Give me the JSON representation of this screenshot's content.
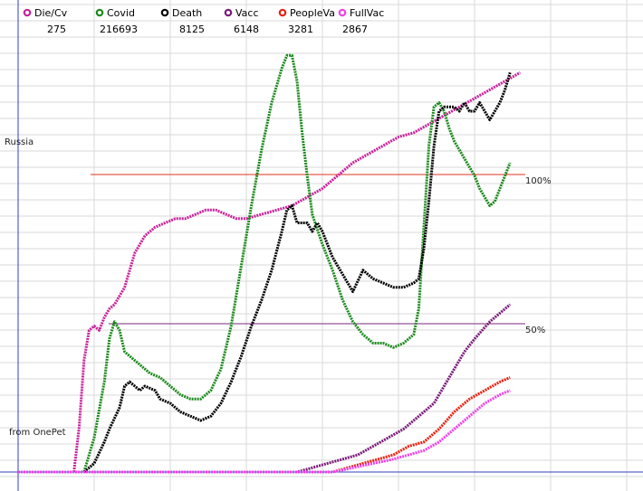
{
  "chart_data": {
    "type": "line",
    "region_label": "Russia",
    "source_note": "from OnePet",
    "reference_lines": [
      {
        "label": "100%",
        "color": "#e03020"
      },
      {
        "label": "50%",
        "color": "#7a2a7a"
      }
    ],
    "legend": [
      {
        "name": "Die/Cv",
        "value": "275",
        "color": "#c8209a"
      },
      {
        "name": "Covid",
        "value": "216693",
        "color": "#1a8a1a"
      },
      {
        "name": "Death",
        "value": "8125",
        "color": "#000000"
      },
      {
        "name": "Vacc",
        "value": "6148",
        "color": "#7a1a7a"
      },
      {
        "name": "PeopleVa",
        "value": "3281",
        "color": "#e82010"
      },
      {
        "name": "FullVac",
        "value": "2867",
        "color": "#f040e8"
      }
    ],
    "x_range": [
      0,
      100
    ],
    "y_range": [
      0,
      100
    ],
    "grid": true,
    "series": [
      {
        "name": "Die/Cv",
        "color": "#c8209a",
        "points": [
          [
            11,
            0
          ],
          [
            12,
            10
          ],
          [
            13,
            26
          ],
          [
            14,
            33
          ],
          [
            15,
            34
          ],
          [
            16,
            33
          ],
          [
            17,
            36
          ],
          [
            18,
            38
          ],
          [
            19,
            39
          ],
          [
            20,
            41
          ],
          [
            21,
            43
          ],
          [
            22,
            47
          ],
          [
            23,
            51
          ],
          [
            25,
            55
          ],
          [
            27,
            57
          ],
          [
            29,
            58
          ],
          [
            31,
            59
          ],
          [
            33,
            59
          ],
          [
            35,
            60
          ],
          [
            37,
            61
          ],
          [
            39,
            61
          ],
          [
            41,
            60
          ],
          [
            43,
            59
          ],
          [
            45,
            59
          ],
          [
            48,
            60
          ],
          [
            51,
            61
          ],
          [
            54,
            62
          ],
          [
            57,
            64
          ],
          [
            60,
            66
          ],
          [
            63,
            69
          ],
          [
            66,
            72
          ],
          [
            69,
            74
          ],
          [
            72,
            76
          ],
          [
            75,
            78
          ],
          [
            78,
            79
          ],
          [
            81,
            81
          ],
          [
            84,
            83
          ],
          [
            87,
            85
          ],
          [
            90,
            87
          ],
          [
            93,
            89
          ],
          [
            96,
            91
          ],
          [
            99,
            93
          ]
        ]
      },
      {
        "name": "Covid",
        "color": "#1a8a1a",
        "points": [
          [
            13,
            0
          ],
          [
            15,
            8
          ],
          [
            17,
            21
          ],
          [
            18,
            31
          ],
          [
            19,
            35
          ],
          [
            20,
            33
          ],
          [
            21,
            28
          ],
          [
            22,
            27
          ],
          [
            24,
            25
          ],
          [
            26,
            23
          ],
          [
            28,
            22
          ],
          [
            30,
            20
          ],
          [
            32,
            18
          ],
          [
            34,
            17
          ],
          [
            36,
            17
          ],
          [
            38,
            19
          ],
          [
            40,
            24
          ],
          [
            42,
            34
          ],
          [
            44,
            48
          ],
          [
            46,
            62
          ],
          [
            48,
            75
          ],
          [
            50,
            86
          ],
          [
            52,
            94
          ],
          [
            53,
            97
          ],
          [
            54,
            97
          ],
          [
            55,
            91
          ],
          [
            56,
            79
          ],
          [
            57,
            69
          ],
          [
            58,
            60
          ],
          [
            60,
            53
          ],
          [
            62,
            47
          ],
          [
            64,
            40
          ],
          [
            66,
            35
          ],
          [
            68,
            32
          ],
          [
            70,
            30
          ],
          [
            72,
            30
          ],
          [
            74,
            29
          ],
          [
            76,
            30
          ],
          [
            78,
            32
          ],
          [
            79,
            38
          ],
          [
            80,
            57
          ],
          [
            81,
            76
          ],
          [
            82,
            85
          ],
          [
            83,
            86
          ],
          [
            84,
            84
          ],
          [
            85,
            80
          ],
          [
            86,
            77
          ],
          [
            87,
            75
          ],
          [
            88,
            73
          ],
          [
            89,
            71
          ],
          [
            90,
            69
          ],
          [
            91,
            66
          ],
          [
            92,
            64
          ],
          [
            93,
            62
          ],
          [
            94,
            63
          ],
          [
            95,
            66
          ],
          [
            96,
            69
          ],
          [
            97,
            72
          ]
        ]
      },
      {
        "name": "Death",
        "color": "#000000",
        "points": [
          [
            13,
            0
          ],
          [
            15,
            2
          ],
          [
            17,
            7
          ],
          [
            18,
            10
          ],
          [
            20,
            15
          ],
          [
            21,
            20
          ],
          [
            22,
            21
          ],
          [
            23,
            20
          ],
          [
            24,
            19
          ],
          [
            25,
            20
          ],
          [
            27,
            19
          ],
          [
            28,
            17
          ],
          [
            30,
            16
          ],
          [
            32,
            14
          ],
          [
            34,
            13
          ],
          [
            36,
            12
          ],
          [
            38,
            13
          ],
          [
            40,
            16
          ],
          [
            42,
            21
          ],
          [
            44,
            27
          ],
          [
            46,
            34
          ],
          [
            48,
            40
          ],
          [
            50,
            47
          ],
          [
            52,
            56
          ],
          [
            53,
            61
          ],
          [
            54,
            62
          ],
          [
            55,
            58
          ],
          [
            56,
            58
          ],
          [
            57,
            58
          ],
          [
            58,
            56
          ],
          [
            59,
            58
          ],
          [
            60,
            56
          ],
          [
            62,
            50
          ],
          [
            64,
            46
          ],
          [
            66,
            42
          ],
          [
            68,
            47
          ],
          [
            70,
            45
          ],
          [
            72,
            44
          ],
          [
            74,
            43
          ],
          [
            76,
            43
          ],
          [
            78,
            44
          ],
          [
            79,
            45
          ],
          [
            80,
            52
          ],
          [
            81,
            63
          ],
          [
            82,
            76
          ],
          [
            83,
            84
          ],
          [
            84,
            85
          ],
          [
            86,
            85
          ],
          [
            87,
            84
          ],
          [
            88,
            86
          ],
          [
            89,
            84
          ],
          [
            90,
            84
          ],
          [
            91,
            86
          ],
          [
            92,
            84
          ],
          [
            93,
            82
          ],
          [
            94,
            84
          ],
          [
            95,
            86
          ],
          [
            96,
            89
          ],
          [
            97,
            93
          ]
        ]
      },
      {
        "name": "Vacc",
        "color": "#7a1a7a",
        "points": [
          [
            0,
            0
          ],
          [
            50,
            0
          ],
          [
            55,
            0
          ],
          [
            58,
            1
          ],
          [
            61,
            2
          ],
          [
            64,
            3
          ],
          [
            67,
            4
          ],
          [
            70,
            6
          ],
          [
            73,
            8
          ],
          [
            76,
            10
          ],
          [
            79,
            13
          ],
          [
            82,
            16
          ],
          [
            85,
            22
          ],
          [
            88,
            28
          ],
          [
            90,
            31
          ],
          [
            93,
            35
          ],
          [
            95,
            37
          ],
          [
            97,
            39
          ]
        ]
      },
      {
        "name": "PeopleVa",
        "color": "#e82010",
        "points": [
          [
            0,
            0
          ],
          [
            62,
            0
          ],
          [
            65,
            1
          ],
          [
            68,
            2
          ],
          [
            71,
            3
          ],
          [
            74,
            4
          ],
          [
            77,
            6
          ],
          [
            80,
            7
          ],
          [
            83,
            10
          ],
          [
            86,
            14
          ],
          [
            89,
            17
          ],
          [
            92,
            19
          ],
          [
            95,
            21
          ],
          [
            97,
            22
          ]
        ]
      },
      {
        "name": "FullVac",
        "color": "#f040e8",
        "points": [
          [
            0,
            0
          ],
          [
            62,
            0
          ],
          [
            66,
            1
          ],
          [
            70,
            2
          ],
          [
            74,
            3
          ],
          [
            77,
            4
          ],
          [
            80,
            5
          ],
          [
            83,
            7
          ],
          [
            86,
            10
          ],
          [
            89,
            13
          ],
          [
            92,
            16
          ],
          [
            95,
            18
          ],
          [
            97,
            19
          ]
        ]
      }
    ]
  }
}
